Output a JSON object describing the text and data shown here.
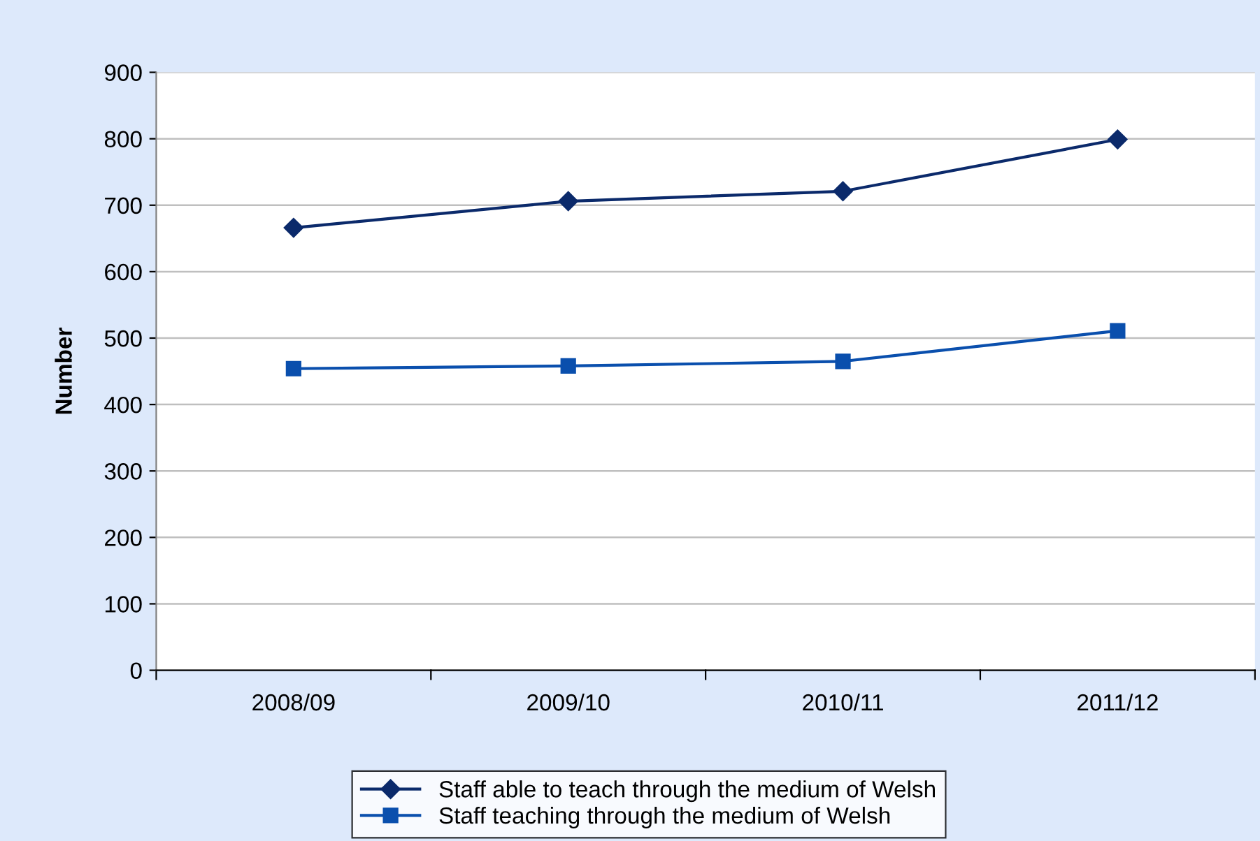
{
  "chart_data": {
    "type": "line",
    "ylabel": "Number",
    "categories": [
      "2008/09",
      "2009/10",
      "2010/11",
      "2011/12"
    ],
    "series": [
      {
        "name": "Staff able to teach through the medium of Welsh",
        "color": "#0b2a6b",
        "marker": "diamond",
        "values": [
          666,
          706,
          721,
          799
        ]
      },
      {
        "name": "Staff teaching through the medium of Welsh",
        "color": "#0a4fad",
        "marker": "square",
        "values": [
          454,
          458,
          465,
          511
        ]
      }
    ],
    "ylim": [
      0,
      900
    ],
    "yticks": [
      0,
      100,
      200,
      300,
      400,
      500,
      600,
      700,
      800,
      900
    ],
    "grid": "y",
    "legend": "bottom",
    "line_style": "solid"
  }
}
